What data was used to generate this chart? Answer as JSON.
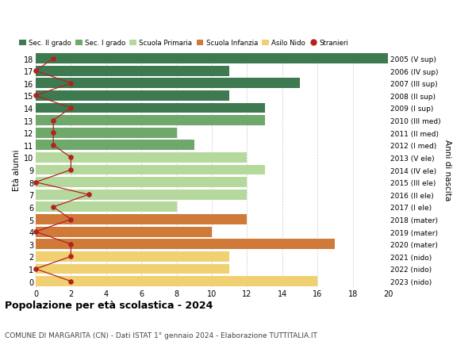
{
  "ages": [
    18,
    17,
    16,
    15,
    14,
    13,
    12,
    11,
    10,
    9,
    8,
    7,
    6,
    5,
    4,
    3,
    2,
    1,
    0
  ],
  "right_labels": [
    "2005 (V sup)",
    "2006 (IV sup)",
    "2007 (III sup)",
    "2008 (II sup)",
    "2009 (I sup)",
    "2010 (III med)",
    "2011 (II med)",
    "2012 (I med)",
    "2013 (V ele)",
    "2014 (IV ele)",
    "2015 (III ele)",
    "2016 (II ele)",
    "2017 (I ele)",
    "2018 (mater)",
    "2019 (mater)",
    "2020 (mater)",
    "2021 (nido)",
    "2022 (nido)",
    "2023 (nido)"
  ],
  "bar_values": [
    20,
    11,
    15,
    11,
    13,
    13,
    8,
    9,
    12,
    13,
    12,
    12,
    8,
    12,
    10,
    17,
    11,
    11,
    16
  ],
  "stranieri": [
    1,
    0,
    2,
    0,
    2,
    1,
    1,
    1,
    2,
    2,
    0,
    3,
    1,
    2,
    0,
    2,
    2,
    0,
    2
  ],
  "bar_colors": [
    "#3d7a4f",
    "#3d7a4f",
    "#3d7a4f",
    "#3d7a4f",
    "#3d7a4f",
    "#6ea86a",
    "#6ea86a",
    "#6ea86a",
    "#b5d99c",
    "#b5d99c",
    "#b5d99c",
    "#b5d99c",
    "#b5d99c",
    "#d07a3a",
    "#d07a3a",
    "#d07a3a",
    "#f0d070",
    "#f0d070",
    "#f0d070"
  ],
  "legend_labels": [
    "Sec. II grado",
    "Sec. I grado",
    "Scuola Primaria",
    "Scuola Infanzia",
    "Asilo Nido",
    "Stranieri"
  ],
  "legend_colors": [
    "#3d7a4f",
    "#6ea86a",
    "#b5d99c",
    "#d07a3a",
    "#f0d070",
    "#b22222"
  ],
  "stranieri_color": "#b22222",
  "stranieri_line_color": "#b22222",
  "title": "Popolazione per età scolastica - 2024",
  "subtitle": "COMUNE DI MARGARITA (CN) - Dati ISTAT 1° gennaio 2024 - Elaborazione TUTTITALIA.IT",
  "ylabel": "Età alunni",
  "right_ylabel": "Anni di nascita",
  "xlim": [
    0,
    20
  ],
  "xticks": [
    0,
    2,
    4,
    6,
    8,
    10,
    12,
    14,
    16,
    18,
    20
  ],
  "background_color": "#ffffff",
  "grid_color": "#cccccc"
}
